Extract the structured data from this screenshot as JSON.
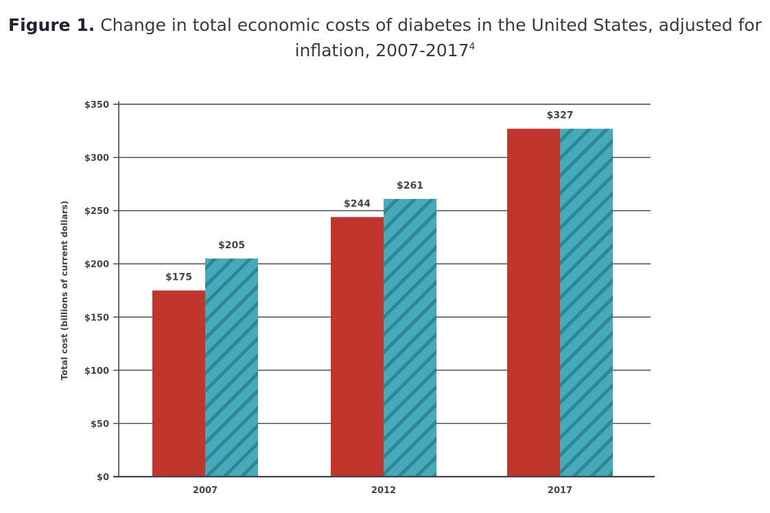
{
  "caption": {
    "label": "Figure 1.",
    "text_line1": "Change in total economic costs of diabetes in the United States, adjusted for",
    "text_line2": "inflation, 2007-2017",
    "superscript": "4"
  },
  "colors": {
    "series_red": "#c0362c",
    "series_teal": "#45aab9",
    "stripe": "#2f8796",
    "grid": "#3a4350"
  },
  "chart_data": {
    "type": "bar",
    "title": "Change in total economic costs of diabetes in the United States, adjusted for inflation, 2007-2017",
    "xlabel": "",
    "ylabel": "Total cost (billions of current dollars)",
    "categories": [
      "2007",
      "2012",
      "2017"
    ],
    "ylim": [
      0,
      350
    ],
    "yticks": [
      0,
      50,
      100,
      150,
      200,
      250,
      300,
      350
    ],
    "ytick_labels": [
      "$0",
      "$50",
      "$100",
      "$150",
      "$200",
      "$250",
      "$300",
      "$350"
    ],
    "grid": true,
    "legend": "none",
    "series": [
      {
        "name": "solid red series",
        "pattern": "solid",
        "values": [
          175,
          244,
          327
        ],
        "labels": [
          "$175",
          "$244",
          ""
        ]
      },
      {
        "name": "striped teal series",
        "pattern": "hatched",
        "values": [
          205,
          261,
          327
        ],
        "labels": [
          "$205",
          "$261",
          "$327"
        ]
      }
    ]
  }
}
